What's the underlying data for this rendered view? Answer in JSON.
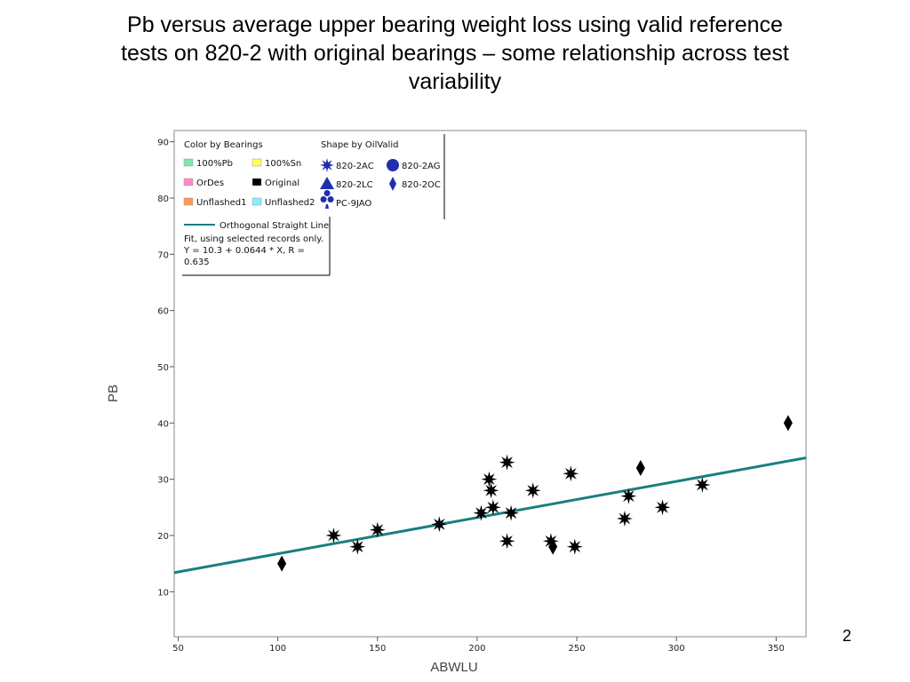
{
  "slide": {
    "title_lines": [
      "Pb versus average upper bearing weight loss using valid reference",
      "tests on 820-2 with original bearings – some relationship across test",
      "variability"
    ],
    "page_number": "2"
  },
  "legend": {
    "color_header": "Color by Bearings",
    "color_items": [
      {
        "label": "100%Pb",
        "color": "#7fe6b3"
      },
      {
        "label": "100%Sn",
        "color": "#ffff55"
      },
      {
        "label": "OrDes",
        "color": "#ff88cc"
      },
      {
        "label": "Original",
        "color": "#000000"
      },
      {
        "label": "Unflashed1",
        "color": "#ff9955"
      },
      {
        "label": "Unflashed2",
        "color": "#88eeff"
      }
    ],
    "shape_header": "Shape by OilValid",
    "shape_items": [
      {
        "label": "820-2AC",
        "shape": "star-icon"
      },
      {
        "label": "820-2AG",
        "shape": "circle-icon"
      },
      {
        "label": "820-2LC",
        "shape": "triangle-icon"
      },
      {
        "label": "820-2OC",
        "shape": "diamond-icon"
      },
      {
        "label": "PC-9JAO",
        "shape": "club-icon"
      }
    ],
    "fit_label": "Orthogonal Straight Line",
    "fit_text_lines": [
      "Fit, using selected records only.",
      "Y = 10.3 + 0.0644 * X, R =",
      "0.635"
    ]
  },
  "chart_data": {
    "type": "scatter",
    "title": "",
    "xlabel": "ABWLU",
    "ylabel": "PB",
    "xlim": [
      48,
      365
    ],
    "ylim": [
      2,
      92
    ],
    "xticks": [
      50,
      100,
      150,
      200,
      250,
      300,
      350
    ],
    "yticks": [
      10,
      20,
      30,
      40,
      50,
      60,
      70,
      80,
      90
    ],
    "grid": false,
    "legend_position": "top-left",
    "fit_line": {
      "intercept": 10.3,
      "slope": 0.0644,
      "x_range": [
        48,
        365
      ],
      "color": "#1a7f7f"
    },
    "series": [
      {
        "name": "820-2AC",
        "marker": "star",
        "color": "#000000",
        "points": [
          [
            128,
            20
          ],
          [
            140,
            18
          ],
          [
            150,
            21
          ],
          [
            181,
            22
          ],
          [
            202,
            24
          ],
          [
            206,
            30
          ],
          [
            207,
            28
          ],
          [
            208,
            25
          ],
          [
            215,
            33
          ],
          [
            215,
            19
          ],
          [
            217,
            24
          ],
          [
            228,
            28
          ],
          [
            237,
            19
          ],
          [
            247,
            31
          ],
          [
            249,
            18
          ],
          [
            274,
            23
          ],
          [
            276,
            27
          ],
          [
            293,
            25
          ],
          [
            313,
            29
          ]
        ]
      },
      {
        "name": "820-2OC",
        "marker": "diamond",
        "color": "#000000",
        "points": [
          [
            102,
            15
          ],
          [
            238,
            18
          ],
          [
            282,
            32
          ],
          [
            356,
            40
          ]
        ]
      }
    ]
  }
}
